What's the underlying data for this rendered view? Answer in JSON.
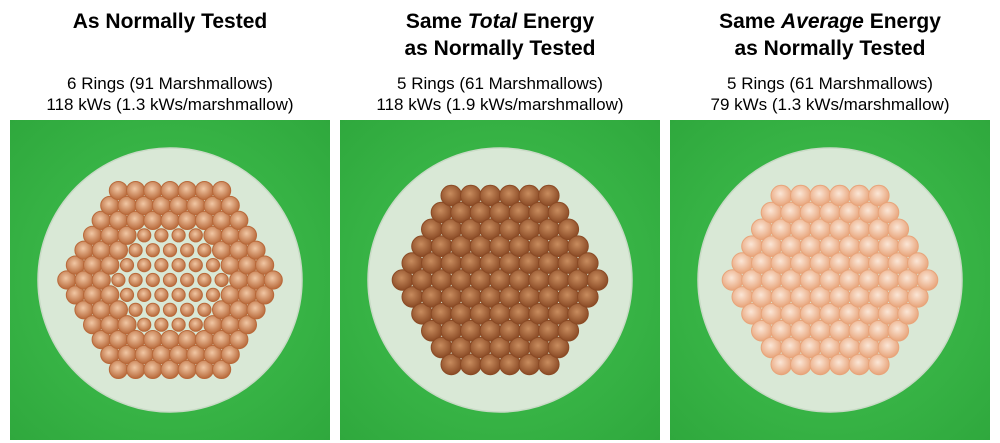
{
  "panels": [
    {
      "title_lines": [
        "As Normally Tested",
        ""
      ],
      "title_emph": "",
      "stat_lines": [
        "6 Rings (91 Marshmallows)",
        "118 kWs (1.3 kWs/marshmallow)"
      ],
      "rings": 6,
      "marshmallows": 91,
      "toast": "medium"
    },
    {
      "title_pre": "Same ",
      "title_emph": "Total",
      "title_post": " Energy",
      "title_line2": "as Normally Tested",
      "stat_lines": [
        "5 Rings (61 Marshmallows)",
        "118 kWs (1.9 kWs/marshmallow)"
      ],
      "rings": 5,
      "marshmallows": 61,
      "toast": "dark"
    },
    {
      "title_pre": "Same ",
      "title_emph": "Average",
      "title_post": " Energy",
      "title_line2": "as Normally Tested",
      "stat_lines": [
        "5 Rings (61 Marshmallows)",
        "79 kWs (1.3 kWs/marshmallow)"
      ],
      "rings": 5,
      "marshmallows": 61,
      "toast": "light"
    }
  ],
  "colors": {
    "background_green": "#37b345",
    "paper_disc": "#d9e8d6",
    "medium_outer": "#b8693a",
    "medium_inner": "#f1c7a4",
    "dark_outer": "#8a4a25",
    "dark_inner": "#c88c5e",
    "light_outer": "#e8a47a",
    "light_inner": "#fbe6d6"
  }
}
